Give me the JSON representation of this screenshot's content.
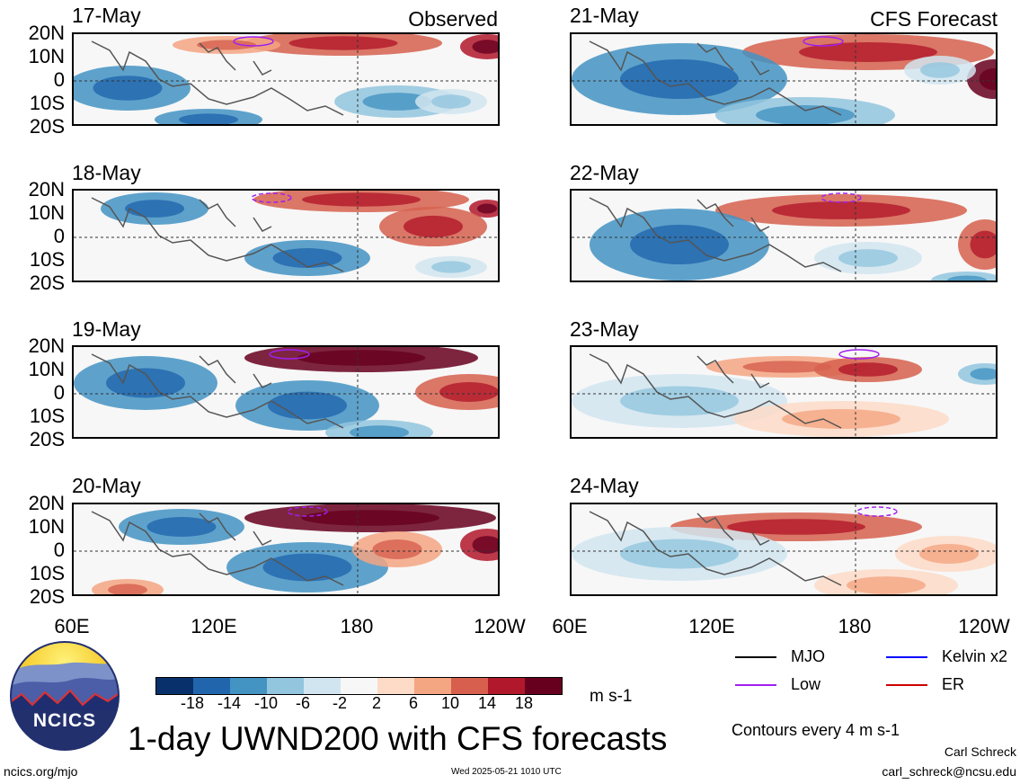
{
  "panels": {
    "observed_label": "Observed",
    "forecast_label": "CFS Forecast",
    "left_dates": [
      "17-May",
      "18-May",
      "19-May",
      "20-May"
    ],
    "right_dates": [
      "21-May",
      "22-May",
      "23-May",
      "24-May"
    ]
  },
  "axes": {
    "lat_labels": [
      "20N",
      "10N",
      "0",
      "10S",
      "20S"
    ],
    "lon_labels": [
      "60E",
      "120E",
      "180",
      "120W"
    ]
  },
  "colorbar": {
    "colors": [
      "#08306b",
      "#2166ac",
      "#4393c3",
      "#92c5de",
      "#d1e5f0",
      "#f7f7f7",
      "#fddbc7",
      "#f4a582",
      "#d6604d",
      "#b2182b",
      "#67001f"
    ],
    "ticks": [
      "-18",
      "-14",
      "-10",
      "-6",
      "-2",
      "2",
      "6",
      "10",
      "14",
      "18"
    ],
    "units": "m s-1"
  },
  "legend": {
    "mjo": {
      "label": "MJO",
      "color": "#000000"
    },
    "kelvin": {
      "label": "Kelvin x2",
      "color": "#0000ff"
    },
    "low": {
      "label": "Low",
      "color": "#a020f0"
    },
    "er": {
      "label": "ER",
      "color": "#cc0000"
    },
    "contours_note": "Contours every 4 m s-1"
  },
  "footer": {
    "logo_text": "NCICS",
    "title": "1-day UWND200 with CFS forecasts",
    "url": "ncics.org/mjo",
    "timestamp": "Wed 2025-05-21 1010 UTC",
    "author": "Carl Schreck",
    "email": "carl_schreck@ncsu.edu"
  }
}
